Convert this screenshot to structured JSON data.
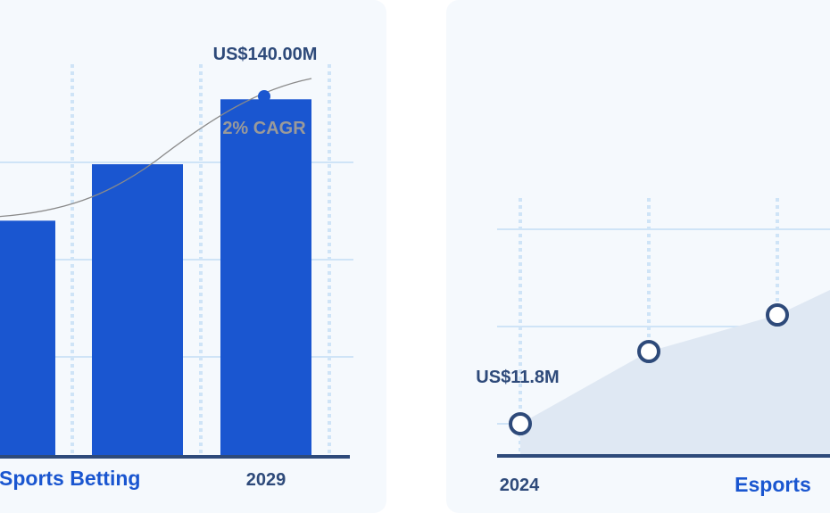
{
  "colors": {
    "bar": "#1a56d0",
    "grid": "#cfe4f7",
    "axis": "#2e4a7a",
    "label_dark": "#2e4a7a",
    "label_blue": "#1a56d0",
    "cagr_gray": "#9a9a9a",
    "area_fill": "#dfe8f3",
    "point_stroke": "#2e4a7a"
  },
  "chart_data": [
    {
      "type": "bar",
      "xlabel": "Sports Betting",
      "tick_labels": [
        "",
        "2029"
      ],
      "annotations": {
        "value_label": "US$140.00M",
        "cagr_label": "2% CAGR"
      },
      "values": [
        83,
        103,
        126
      ],
      "ylim": [
        0,
        140
      ],
      "trend_line": true
    },
    {
      "type": "area",
      "xlabel": "Esports",
      "tick_labels": [
        "2024"
      ],
      "annotations": {
        "value_label": "US$11.8M"
      },
      "values": [
        11.8,
        16.7,
        19.2
      ],
      "ylim": [
        10,
        30
      ]
    }
  ]
}
